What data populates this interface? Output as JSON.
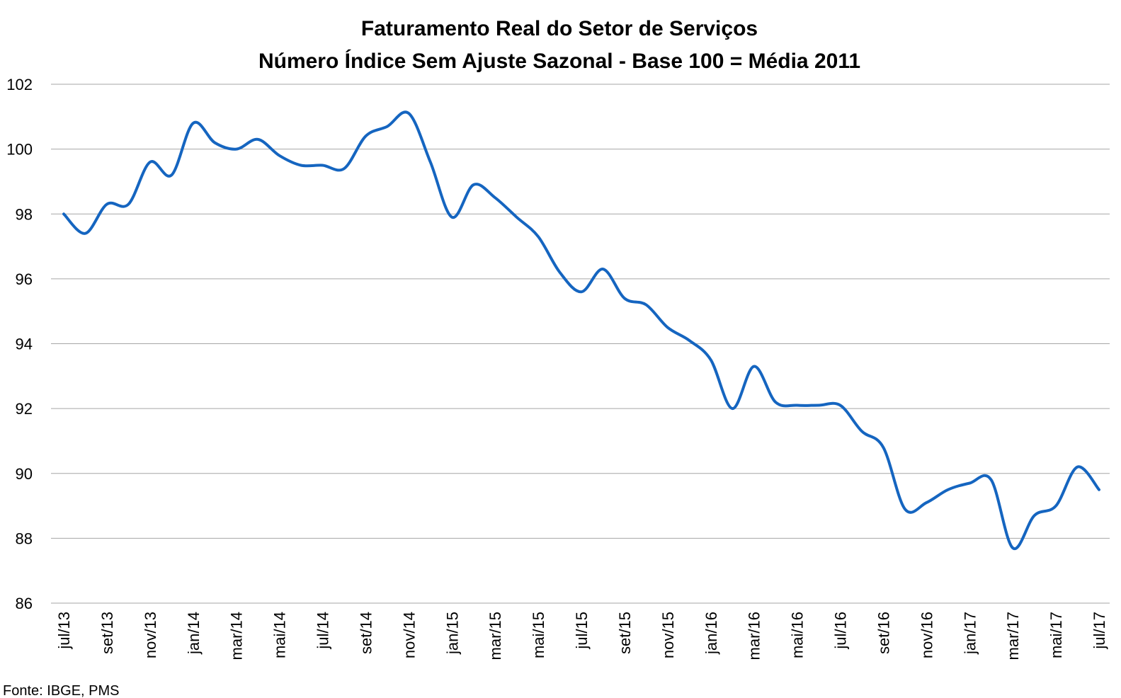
{
  "chart_data": {
    "type": "line",
    "title": "Faturamento Real do Setor de Serviços",
    "subtitle": "Número Índice Sem Ajuste Sazonal - Base 100 = Média 2011",
    "xlabel": "",
    "ylabel": "",
    "ylim": [
      86,
      102
    ],
    "yticks": [
      "86",
      "88",
      "90",
      "92",
      "94",
      "96",
      "98",
      "100",
      "102"
    ],
    "grid": true,
    "legend": "none",
    "line_color": "#1565c0",
    "x": [
      "jul/13",
      "ago/13",
      "set/13",
      "out/13",
      "nov/13",
      "dez/13",
      "jan/14",
      "fev/14",
      "mar/14",
      "abr/14",
      "mai/14",
      "jun/14",
      "jul/14",
      "ago/14",
      "set/14",
      "out/14",
      "nov/14",
      "dez/14",
      "jan/15",
      "fev/15",
      "mar/15",
      "abr/15",
      "mai/15",
      "jun/15",
      "jul/15",
      "ago/15",
      "set/15",
      "out/15",
      "nov/15",
      "dez/15",
      "jan/16",
      "fev/16",
      "mar/16",
      "abr/16",
      "mai/16",
      "jun/16",
      "jul/16",
      "ago/16",
      "set/16",
      "out/16",
      "nov/16",
      "dez/16",
      "jan/17",
      "fev/17",
      "mar/17",
      "abr/17",
      "mai/17",
      "jun/17",
      "jul/17"
    ],
    "x_tick_labels": [
      "jul/13",
      "set/13",
      "nov/13",
      "jan/14",
      "mar/14",
      "mai/14",
      "jul/14",
      "set/14",
      "nov/14",
      "jan/15",
      "mar/15",
      "mai/15",
      "jul/15",
      "set/15",
      "nov/15",
      "jan/16",
      "mar/16",
      "mai/16",
      "jul/16",
      "set/16",
      "nov/16",
      "jan/17",
      "mar/17",
      "mai/17",
      "jul/17"
    ],
    "series": [
      {
        "name": "Faturamento Real do Setor de Serviços",
        "values": [
          98.0,
          97.4,
          98.3,
          98.3,
          99.6,
          99.2,
          100.8,
          100.2,
          100.0,
          100.3,
          99.8,
          99.5,
          99.5,
          99.4,
          100.4,
          100.7,
          101.1,
          99.6,
          97.9,
          98.9,
          98.5,
          97.9,
          97.3,
          96.2,
          95.6,
          96.3,
          95.4,
          95.2,
          94.5,
          94.1,
          93.5,
          92.0,
          93.3,
          92.2,
          92.1,
          92.1,
          92.1,
          91.3,
          90.8,
          88.9,
          89.1,
          89.5,
          89.7,
          89.8,
          87.7,
          88.7,
          89.0,
          90.2,
          89.5
        ]
      }
    ]
  },
  "footer": {
    "source": "Fonte: IBGE, PMS"
  }
}
